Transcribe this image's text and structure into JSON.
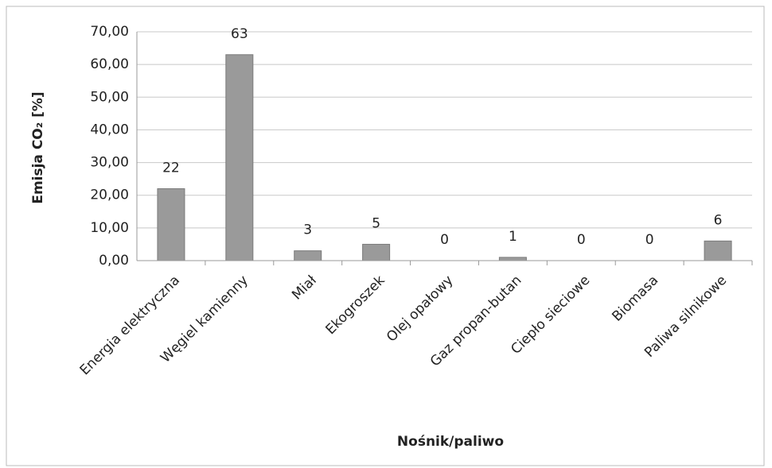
{
  "chart_data": {
    "type": "bar",
    "y_label": "Emisja CO₂ [%]",
    "x_label": "Nośnik/paliwo",
    "categories": [
      "Energia elektryczna",
      "Węgiel kamienny",
      "Miał",
      "Ekogroszek",
      "Olej opałowy",
      "Gaz propan-butan",
      "Ciepło sieciowe",
      "Biomasa",
      "Paliwa silnikowe"
    ],
    "values": [
      22,
      63,
      3,
      5,
      0,
      1,
      0,
      0,
      6
    ],
    "color": "#9a9a9a",
    "ylim": [
      0,
      70
    ],
    "yticks": [
      {
        "value": 0,
        "label": "0,00"
      },
      {
        "value": 10,
        "label": "10,00"
      },
      {
        "value": 20,
        "label": "20,00"
      },
      {
        "value": 30,
        "label": "30,00"
      },
      {
        "value": 40,
        "label": "40,00"
      },
      {
        "value": 50,
        "label": "50,00"
      },
      {
        "value": 60,
        "label": "60,00"
      },
      {
        "value": 70,
        "label": "70,00"
      }
    ],
    "grid": true
  }
}
